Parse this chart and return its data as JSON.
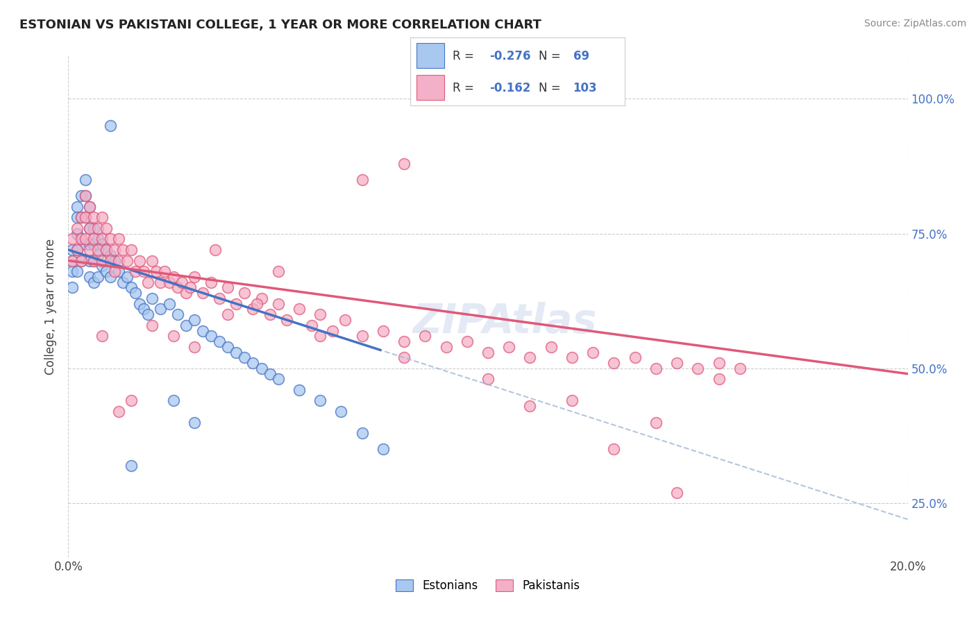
{
  "title": "ESTONIAN VS PAKISTANI COLLEGE, 1 YEAR OR MORE CORRELATION CHART",
  "source_text": "Source: ZipAtlas.com",
  "ylabel": "College, 1 year or more",
  "xlim": [
    0.0,
    0.2
  ],
  "ylim": [
    0.15,
    1.08
  ],
  "ytick_vals": [
    0.25,
    0.5,
    0.75,
    1.0
  ],
  "ytick_labels": [
    "25.0%",
    "50.0%",
    "75.0%",
    "100.0%"
  ],
  "r_estonian": -0.276,
  "n_estonian": 69,
  "r_pakistani": -0.162,
  "n_pakistani": 103,
  "legend_estonian": "Estonians",
  "legend_pakistani": "Pakistanis",
  "color_estonian": "#a8c8f0",
  "color_pakistani": "#f4b0c8",
  "color_estonian_line": "#4472c4",
  "color_pakistani_line": "#e05878",
  "color_legend_r": "#4472c4",
  "watermark": "ZIPAtlas",
  "estonian_x": [
    0.001,
    0.001,
    0.001,
    0.001,
    0.002,
    0.002,
    0.002,
    0.002,
    0.002,
    0.003,
    0.003,
    0.003,
    0.003,
    0.004,
    0.004,
    0.004,
    0.004,
    0.005,
    0.005,
    0.005,
    0.005,
    0.005,
    0.006,
    0.006,
    0.006,
    0.006,
    0.007,
    0.007,
    0.007,
    0.008,
    0.008,
    0.009,
    0.009,
    0.01,
    0.01,
    0.011,
    0.012,
    0.013,
    0.014,
    0.015,
    0.016,
    0.017,
    0.018,
    0.019,
    0.02,
    0.022,
    0.024,
    0.026,
    0.028,
    0.03,
    0.032,
    0.034,
    0.036,
    0.038,
    0.04,
    0.042,
    0.044,
    0.046,
    0.048,
    0.05,
    0.055,
    0.06,
    0.065,
    0.07,
    0.075,
    0.03,
    0.025,
    0.015,
    0.01
  ],
  "estonian_y": [
    0.72,
    0.7,
    0.68,
    0.65,
    0.8,
    0.78,
    0.75,
    0.72,
    0.68,
    0.82,
    0.78,
    0.74,
    0.7,
    0.85,
    0.82,
    0.78,
    0.73,
    0.8,
    0.76,
    0.73,
    0.7,
    0.67,
    0.76,
    0.73,
    0.7,
    0.66,
    0.74,
    0.71,
    0.67,
    0.73,
    0.69,
    0.72,
    0.68,
    0.71,
    0.67,
    0.7,
    0.68,
    0.66,
    0.67,
    0.65,
    0.64,
    0.62,
    0.61,
    0.6,
    0.63,
    0.61,
    0.62,
    0.6,
    0.58,
    0.59,
    0.57,
    0.56,
    0.55,
    0.54,
    0.53,
    0.52,
    0.51,
    0.5,
    0.49,
    0.48,
    0.46,
    0.44,
    0.42,
    0.38,
    0.35,
    0.4,
    0.44,
    0.32,
    0.95
  ],
  "pakistani_x": [
    0.001,
    0.001,
    0.002,
    0.002,
    0.003,
    0.003,
    0.003,
    0.004,
    0.004,
    0.004,
    0.005,
    0.005,
    0.005,
    0.006,
    0.006,
    0.006,
    0.007,
    0.007,
    0.008,
    0.008,
    0.008,
    0.009,
    0.009,
    0.01,
    0.01,
    0.011,
    0.011,
    0.012,
    0.012,
    0.013,
    0.014,
    0.015,
    0.016,
    0.017,
    0.018,
    0.019,
    0.02,
    0.021,
    0.022,
    0.023,
    0.024,
    0.025,
    0.026,
    0.027,
    0.028,
    0.029,
    0.03,
    0.032,
    0.034,
    0.036,
    0.038,
    0.04,
    0.042,
    0.044,
    0.046,
    0.048,
    0.05,
    0.052,
    0.055,
    0.058,
    0.06,
    0.063,
    0.066,
    0.07,
    0.075,
    0.08,
    0.085,
    0.09,
    0.095,
    0.1,
    0.105,
    0.11,
    0.115,
    0.12,
    0.125,
    0.13,
    0.135,
    0.14,
    0.145,
    0.15,
    0.155,
    0.16,
    0.038,
    0.025,
    0.015,
    0.008,
    0.012,
    0.02,
    0.03,
    0.045,
    0.06,
    0.08,
    0.1,
    0.12,
    0.14,
    0.08,
    0.05,
    0.035,
    0.155,
    0.145,
    0.13,
    0.11,
    0.07
  ],
  "pakistani_y": [
    0.74,
    0.7,
    0.76,
    0.72,
    0.78,
    0.74,
    0.7,
    0.82,
    0.78,
    0.74,
    0.8,
    0.76,
    0.72,
    0.78,
    0.74,
    0.7,
    0.76,
    0.72,
    0.78,
    0.74,
    0.7,
    0.76,
    0.72,
    0.74,
    0.7,
    0.72,
    0.68,
    0.74,
    0.7,
    0.72,
    0.7,
    0.72,
    0.68,
    0.7,
    0.68,
    0.66,
    0.7,
    0.68,
    0.66,
    0.68,
    0.66,
    0.67,
    0.65,
    0.66,
    0.64,
    0.65,
    0.67,
    0.64,
    0.66,
    0.63,
    0.65,
    0.62,
    0.64,
    0.61,
    0.63,
    0.6,
    0.62,
    0.59,
    0.61,
    0.58,
    0.6,
    0.57,
    0.59,
    0.56,
    0.57,
    0.55,
    0.56,
    0.54,
    0.55,
    0.53,
    0.54,
    0.52,
    0.54,
    0.52,
    0.53,
    0.51,
    0.52,
    0.5,
    0.51,
    0.5,
    0.51,
    0.5,
    0.6,
    0.56,
    0.44,
    0.56,
    0.42,
    0.58,
    0.54,
    0.62,
    0.56,
    0.52,
    0.48,
    0.44,
    0.4,
    0.88,
    0.68,
    0.72,
    0.48,
    0.27,
    0.35,
    0.43,
    0.85
  ]
}
